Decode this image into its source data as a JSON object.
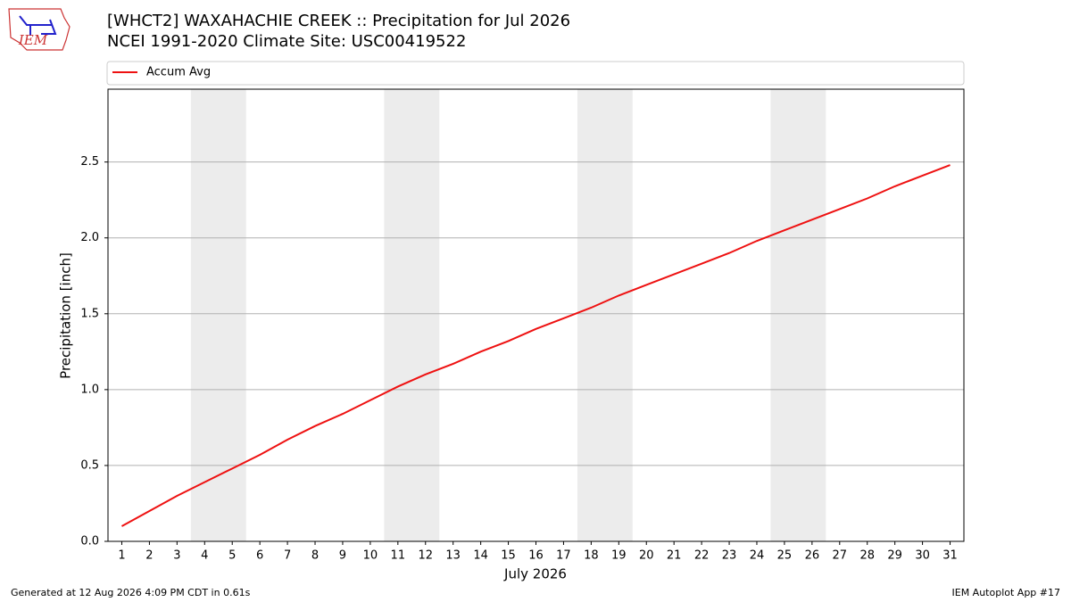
{
  "chart_data": {
    "type": "line",
    "title": "[WHCT2] WAXAHACHIE CREEK :: Precipitation for Jul 2026",
    "subtitle": "NCEI 1991-2020 Climate Site: USC00419522",
    "logo_text": "IEM",
    "x_label": "July 2026",
    "y_label": "Precipitation [inch]",
    "x": [
      1,
      2,
      3,
      4,
      5,
      6,
      7,
      8,
      9,
      10,
      11,
      12,
      13,
      14,
      15,
      16,
      17,
      18,
      19,
      20,
      21,
      22,
      23,
      24,
      25,
      26,
      27,
      28,
      29,
      30,
      31
    ],
    "series": [
      {
        "name": "Accum Avg",
        "color": "#ee1111",
        "values": [
          0.1,
          0.2,
          0.3,
          0.39,
          0.48,
          0.57,
          0.67,
          0.76,
          0.84,
          0.93,
          1.02,
          1.1,
          1.17,
          1.25,
          1.32,
          1.4,
          1.47,
          1.54,
          1.62,
          1.69,
          1.76,
          1.83,
          1.9,
          1.98,
          2.05,
          2.12,
          2.19,
          2.26,
          2.34,
          2.41,
          2.48
        ]
      }
    ],
    "xlim": [
      0.5,
      31.5
    ],
    "xticks": [
      1,
      2,
      3,
      4,
      5,
      6,
      7,
      8,
      9,
      10,
      11,
      12,
      13,
      14,
      15,
      16,
      17,
      18,
      19,
      20,
      21,
      22,
      23,
      24,
      25,
      26,
      27,
      28,
      29,
      30,
      31
    ],
    "ylim": [
      0,
      2.98
    ],
    "yticks": [
      {
        "value": 0,
        "label": "0.0"
      },
      0.5,
      {
        "value": 1,
        "label": "1.0"
      },
      1.5,
      {
        "value": 2,
        "label": "2.0"
      },
      2.5
    ],
    "grid": true,
    "weekend_shading": [
      [
        3.5,
        5.5
      ],
      [
        10.5,
        12.5
      ],
      [
        17.5,
        19.5
      ],
      [
        24.5,
        26.5
      ]
    ],
    "shading_color": "#ececec",
    "legend": "top",
    "footer_left": "Generated at 12 Aug 2026 4:09 PM CDT in 0.61s",
    "footer_right": "IEM Autoplot App #17"
  }
}
